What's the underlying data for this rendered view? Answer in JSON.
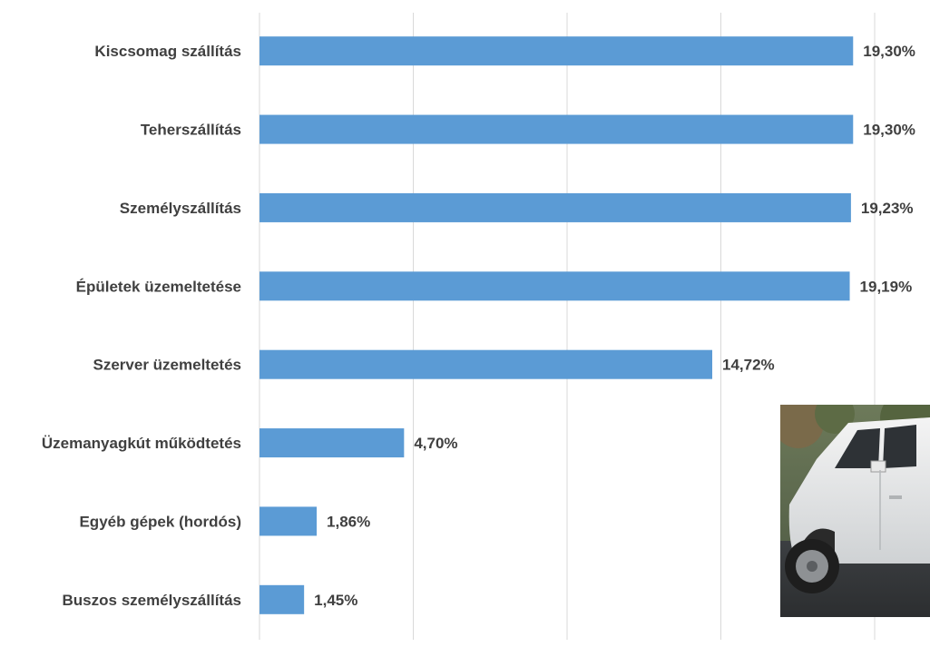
{
  "chart_data": {
    "type": "bar",
    "orientation": "horizontal",
    "categories": [
      "Kiscsomag szállítás",
      "Teherszállítás",
      "Személyszállítás",
      "Épületek üzemeltetése",
      "Szerver üzemeltetés",
      "Üzemanyagkút működtetés",
      "Egyéb gépek (hordós)",
      "Buszos személyszállítás"
    ],
    "values": [
      19.3,
      19.3,
      19.23,
      19.19,
      14.72,
      4.7,
      1.86,
      1.45
    ],
    "data_labels": [
      "19,30%",
      "19,30%",
      "19,23%",
      "19,19%",
      "14,72%",
      "4,70%",
      "1,86%",
      "1,45%"
    ],
    "xlim": [
      0,
      20
    ],
    "grid_step": 5,
    "grid": true,
    "bar_color": "#5b9bd5",
    "title": "",
    "xlabel": "",
    "ylabel": ""
  },
  "photo": {
    "subject": "white-pickup-truck"
  }
}
